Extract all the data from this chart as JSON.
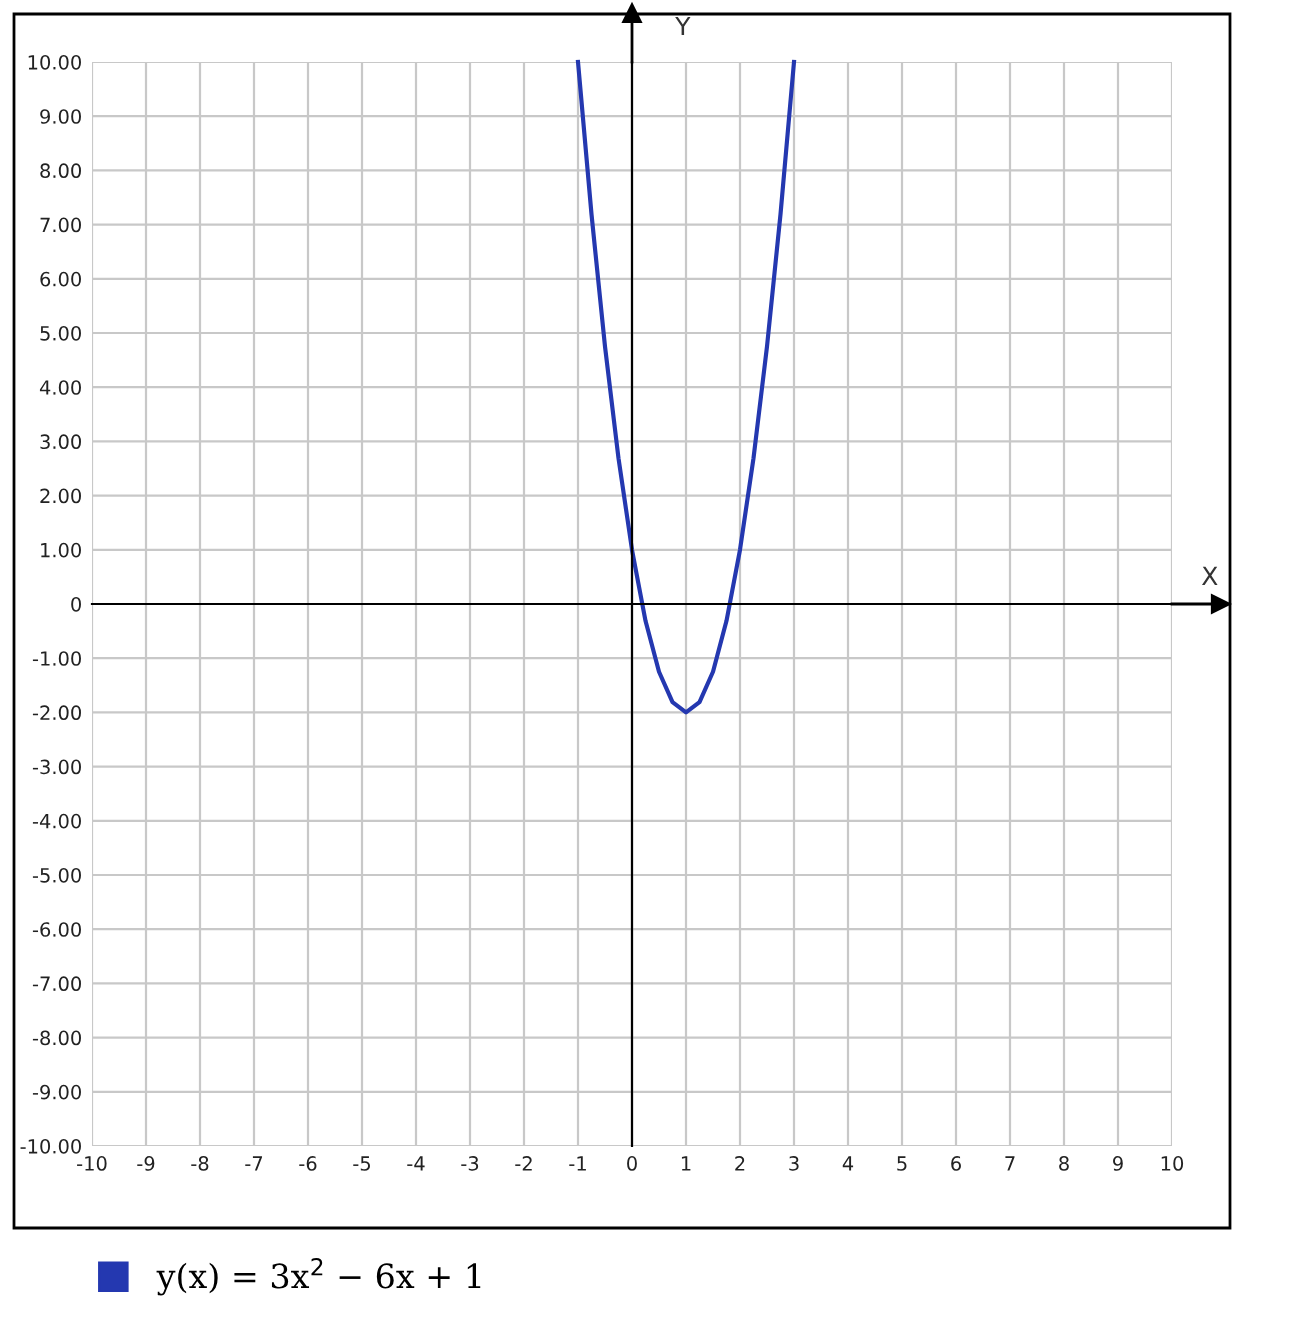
{
  "chart_data": {
    "type": "line",
    "xlabel": "X",
    "ylabel": "Y",
    "xlim": [
      -10,
      10
    ],
    "ylim": [
      -10,
      10
    ],
    "xticks": [
      -10,
      -9,
      -8,
      -7,
      -6,
      -5,
      -4,
      -3,
      -2,
      -1,
      0,
      1,
      2,
      3,
      4,
      5,
      6,
      7,
      8,
      9,
      10
    ],
    "yticks": [
      {
        "value": -10,
        "label": "-10.00"
      },
      {
        "value": -9,
        "label": "-9.00"
      },
      {
        "value": -8,
        "label": "-8.00"
      },
      {
        "value": -7,
        "label": "-7.00"
      },
      {
        "value": -6,
        "label": "-6.00"
      },
      {
        "value": -5,
        "label": "-5.00"
      },
      {
        "value": -4,
        "label": "-4.00"
      },
      {
        "value": -3,
        "label": "-3.00"
      },
      {
        "value": -2,
        "label": "-2.00"
      },
      {
        "value": -1,
        "label": "-1.00"
      },
      0,
      {
        "value": 1,
        "label": "1.00"
      },
      {
        "value": 2,
        "label": "2.00"
      },
      {
        "value": 3,
        "label": "3.00"
      },
      {
        "value": 4,
        "label": "4.00"
      },
      {
        "value": 5,
        "label": "5.00"
      },
      {
        "value": 6,
        "label": "6.00"
      },
      {
        "value": 7,
        "label": "7.00"
      },
      {
        "value": 8,
        "label": "8.00"
      },
      {
        "value": 9,
        "label": "9.00"
      },
      {
        "value": 10,
        "label": "10.00"
      }
    ],
    "grid": true,
    "legend": "bottom",
    "marker": "none",
    "line_style": "solid",
    "series": [
      {
        "name": "y(x) = 3x$^{2}$ − 6x + 1",
        "color": "#2438b0",
        "x": [
          -1,
          -0.75,
          -0.5,
          -0.25,
          0,
          0.25,
          0.5,
          0.75,
          1,
          1.25,
          1.5,
          1.75,
          2,
          2.25,
          2.5,
          2.75,
          3
        ],
        "values": [
          10,
          7.19,
          4.75,
          2.69,
          1,
          -0.31,
          -1.25,
          -1.81,
          -2,
          -1.81,
          -1.25,
          -0.31,
          1,
          2.69,
          4.75,
          7.19,
          10
        ]
      }
    ]
  }
}
